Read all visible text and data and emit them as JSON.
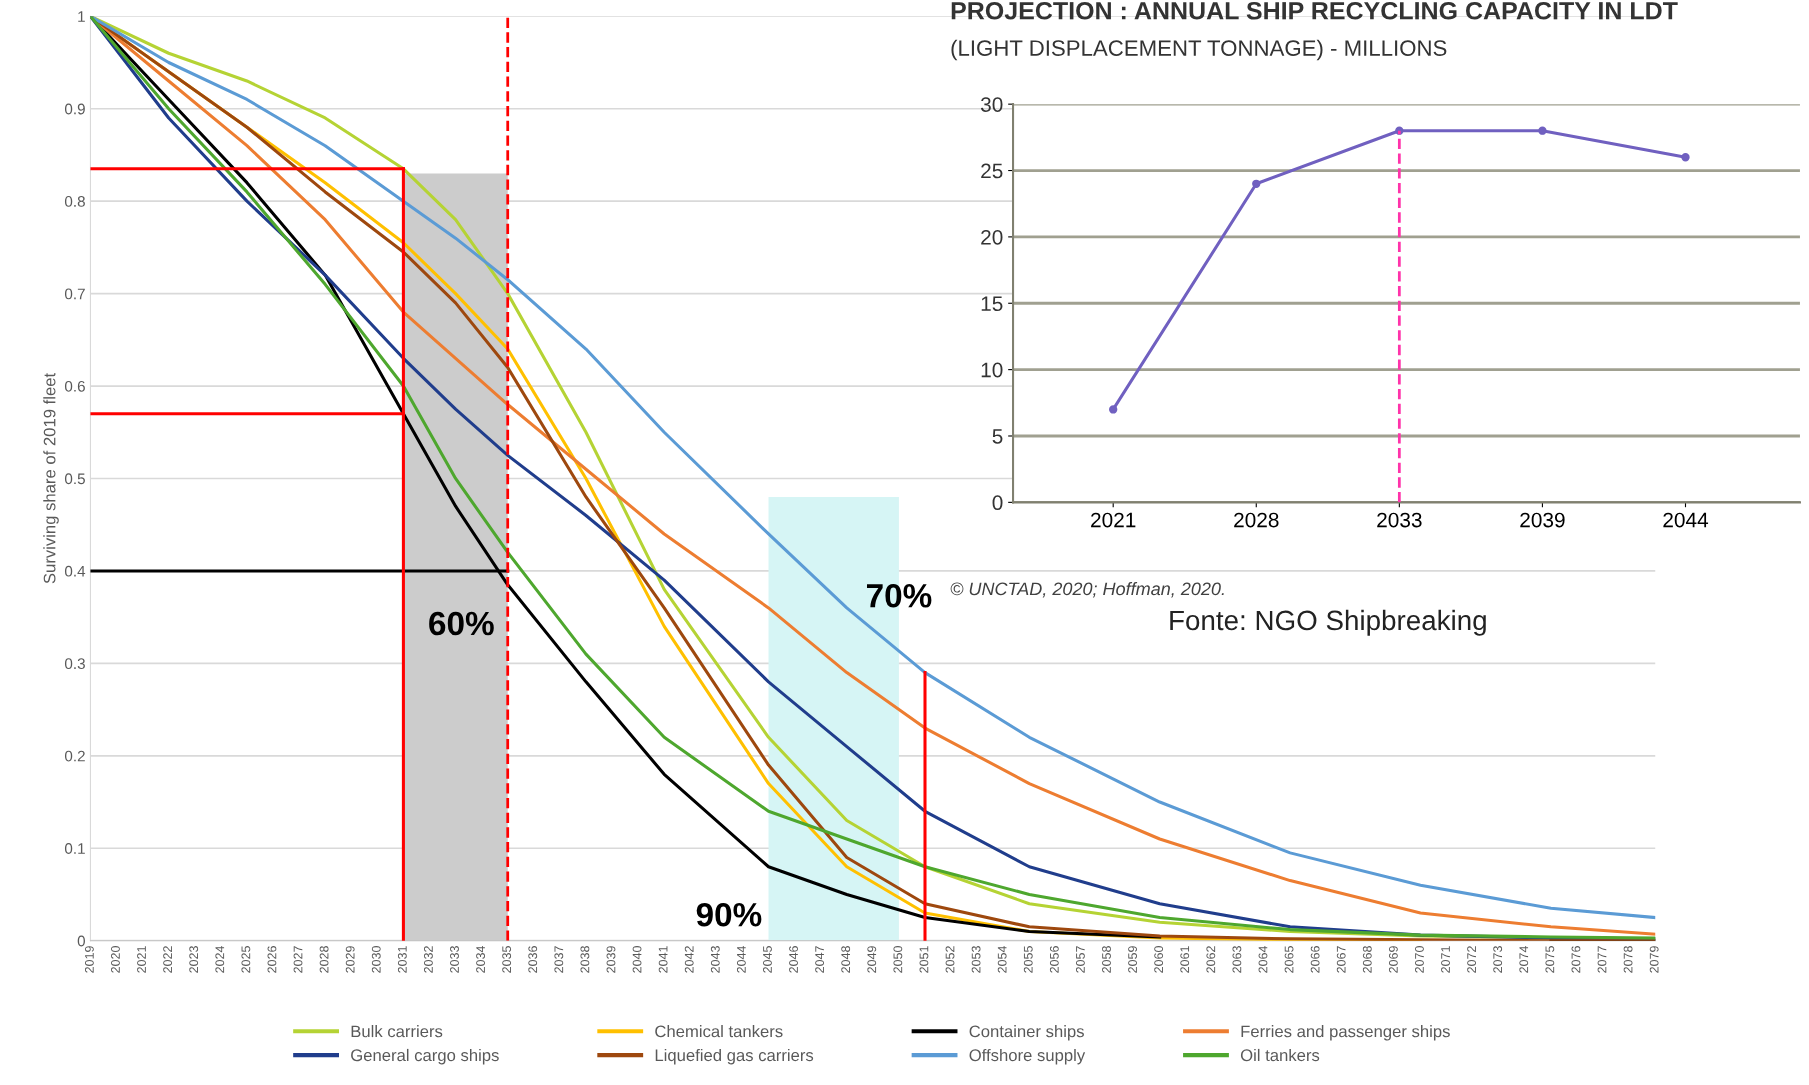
{
  "chart_data": [
    {
      "type": "line",
      "ylabel": "Surviving share of 2019 fleet",
      "x": [
        2019,
        2022,
        2025,
        2028,
        2031,
        2033,
        2035,
        2038,
        2041,
        2045,
        2048,
        2051,
        2055,
        2060,
        2065,
        2070,
        2075,
        2079
      ],
      "series": [
        {
          "name": "Bulk carriers",
          "color": "#b5d334",
          "values": [
            1,
            0.96,
            0.93,
            0.89,
            0.835,
            0.78,
            0.7,
            0.55,
            0.38,
            0.22,
            0.13,
            0.08,
            0.04,
            0.02,
            0.01,
            0.005,
            0.003,
            0.002
          ]
        },
        {
          "name": "Chemical tankers",
          "color": "#ffc000",
          "values": [
            1,
            0.94,
            0.88,
            0.82,
            0.755,
            0.7,
            0.64,
            0.5,
            0.34,
            0.17,
            0.08,
            0.03,
            0.01,
            0.003,
            0.001,
            0,
            null,
            null
          ]
        },
        {
          "name": "Container ships",
          "color": "#000000",
          "values": [
            1,
            0.91,
            0.82,
            0.72,
            0.57,
            0.47,
            0.385,
            0.28,
            0.18,
            0.08,
            0.05,
            0.025,
            0.01,
            0.004,
            null,
            null,
            0,
            0
          ]
        },
        {
          "name": "Ferries and passenger ships",
          "color": "#ed7d31",
          "values": [
            1,
            0.93,
            0.86,
            0.78,
            0.68,
            0.63,
            0.58,
            0.51,
            0.44,
            0.36,
            0.29,
            0.23,
            0.17,
            0.11,
            0.065,
            0.03,
            0.015,
            0.007
          ]
        },
        {
          "name": "General cargo ships",
          "color": "#203d8c",
          "values": [
            1,
            0.89,
            0.8,
            0.72,
            0.63,
            0.575,
            0.525,
            0.46,
            0.39,
            0.28,
            0.21,
            0.14,
            0.08,
            0.04,
            0.015,
            0.006,
            0.003,
            0.002
          ]
        },
        {
          "name": "Liquefied gas carriers",
          "color": "#9e480e",
          "values": [
            1,
            0.94,
            0.88,
            0.81,
            0.745,
            0.69,
            0.62,
            0.48,
            0.36,
            0.19,
            0.09,
            0.04,
            0.015,
            0.005,
            0.002,
            0.001,
            0,
            0
          ]
        },
        {
          "name": "Offshore supply",
          "color": "#5b9bd5",
          "values": [
            1,
            0.95,
            0.91,
            0.86,
            0.8,
            0.76,
            0.715,
            0.64,
            0.55,
            0.44,
            0.36,
            0.29,
            0.22,
            0.15,
            0.095,
            0.06,
            0.035,
            0.025
          ]
        },
        {
          "name": "Oil tankers",
          "color": "#4ea72e",
          "values": [
            1,
            0.9,
            0.81,
            0.71,
            0.6,
            0.5,
            0.42,
            0.31,
            0.22,
            0.14,
            0.11,
            0.08,
            0.05,
            0.025,
            0.012,
            0.006,
            0.004,
            0.003
          ]
        },
        {
          "type": "area",
          "color": "#cccccc",
          "x": [
            2031,
            2035
          ],
          "values": [
            0.83,
            0.83
          ]
        },
        {
          "type": "area",
          "color": "#d6f5f5",
          "x": [
            2045,
            2050
          ],
          "values": [
            0.48,
            0.48
          ]
        },
        {
          "color": "#000000",
          "x": [
            2019,
            2035
          ],
          "values": [
            0.4,
            0.4
          ]
        },
        {
          "color": "#ff0000",
          "x": [
            2019,
            2031
          ],
          "values": [
            0.835,
            0.835
          ]
        },
        {
          "color": "#ff0000",
          "x": [
            2019,
            2031
          ],
          "values": [
            0.57,
            0.57
          ]
        },
        {
          "color": "#ff0000",
          "x": [
            2031,
            2031
          ],
          "values": [
            0,
            0.835
          ]
        },
        {
          "color": "#ff0000",
          "x": [
            2051,
            2051
          ],
          "values": [
            0,
            0.29
          ]
        }
      ],
      "ref_lines": [
        {
          "axis": "x",
          "value": 2035,
          "color": "#ff0000",
          "line_style": "dashed"
        }
      ],
      "annotations": [
        "60%",
        {
          "text": "70%",
          "x": 2050,
          "y": 0.37
        },
        "90%"
      ],
      "xlim": [
        2019,
        2079
      ],
      "xticks": [
        2019,
        2020,
        2021,
        2022,
        2023,
        2024,
        2025,
        2026,
        2027,
        2028,
        2029,
        2030,
        2031,
        2032,
        2033,
        2034,
        2035,
        2036,
        2037,
        2038,
        2039,
        2040,
        2041,
        2042,
        2043,
        2044,
        2045,
        2046,
        2047,
        2048,
        2049,
        2050,
        2051,
        2052,
        2053,
        2054,
        2055,
        2056,
        2057,
        2058,
        2059,
        2060,
        2061,
        2062,
        2063,
        2064,
        2065,
        2066,
        2067,
        2068,
        2069,
        2070,
        2071,
        2072,
        2073,
        2074,
        2075,
        2076,
        2077,
        2078,
        2079
      ],
      "ylim": [
        0,
        1
      ],
      "yticks": [
        0,
        0.1,
        0.2,
        0.3,
        0.4,
        0.5,
        0.6,
        0.7,
        0.8,
        0.9,
        1
      ],
      "grid": "y",
      "legend": "bottom",
      "marker": "none",
      "line_style": "solid"
    },
    {
      "type": "line",
      "title": "PROJECTION : ANNUAL SHIP RECYCLING CAPACITY IN LDT",
      "subtitle": "(LIGHT DISPLACEMENT TONNAGE) - MILLIONS",
      "categories": [
        "2021",
        "2028",
        "2033",
        "2039",
        "2044"
      ],
      "series": [
        {
          "color": "#7060c0",
          "values": [
            7,
            24,
            28,
            28,
            26
          ],
          "marker": "circle"
        }
      ],
      "ref_lines": [
        {
          "axis": "x",
          "value": "2033",
          "color": "#ff33aa",
          "line_style": "dashed"
        }
      ],
      "ylim": [
        0,
        30
      ],
      "yticks": [
        0,
        5,
        10,
        15,
        20,
        25,
        30
      ],
      "grid": "y",
      "annotations": [
        "© UNCTAD, 2020; Hoffman, 2020.",
        "Fonte: NGO Shipbreaking"
      ]
    }
  ]
}
